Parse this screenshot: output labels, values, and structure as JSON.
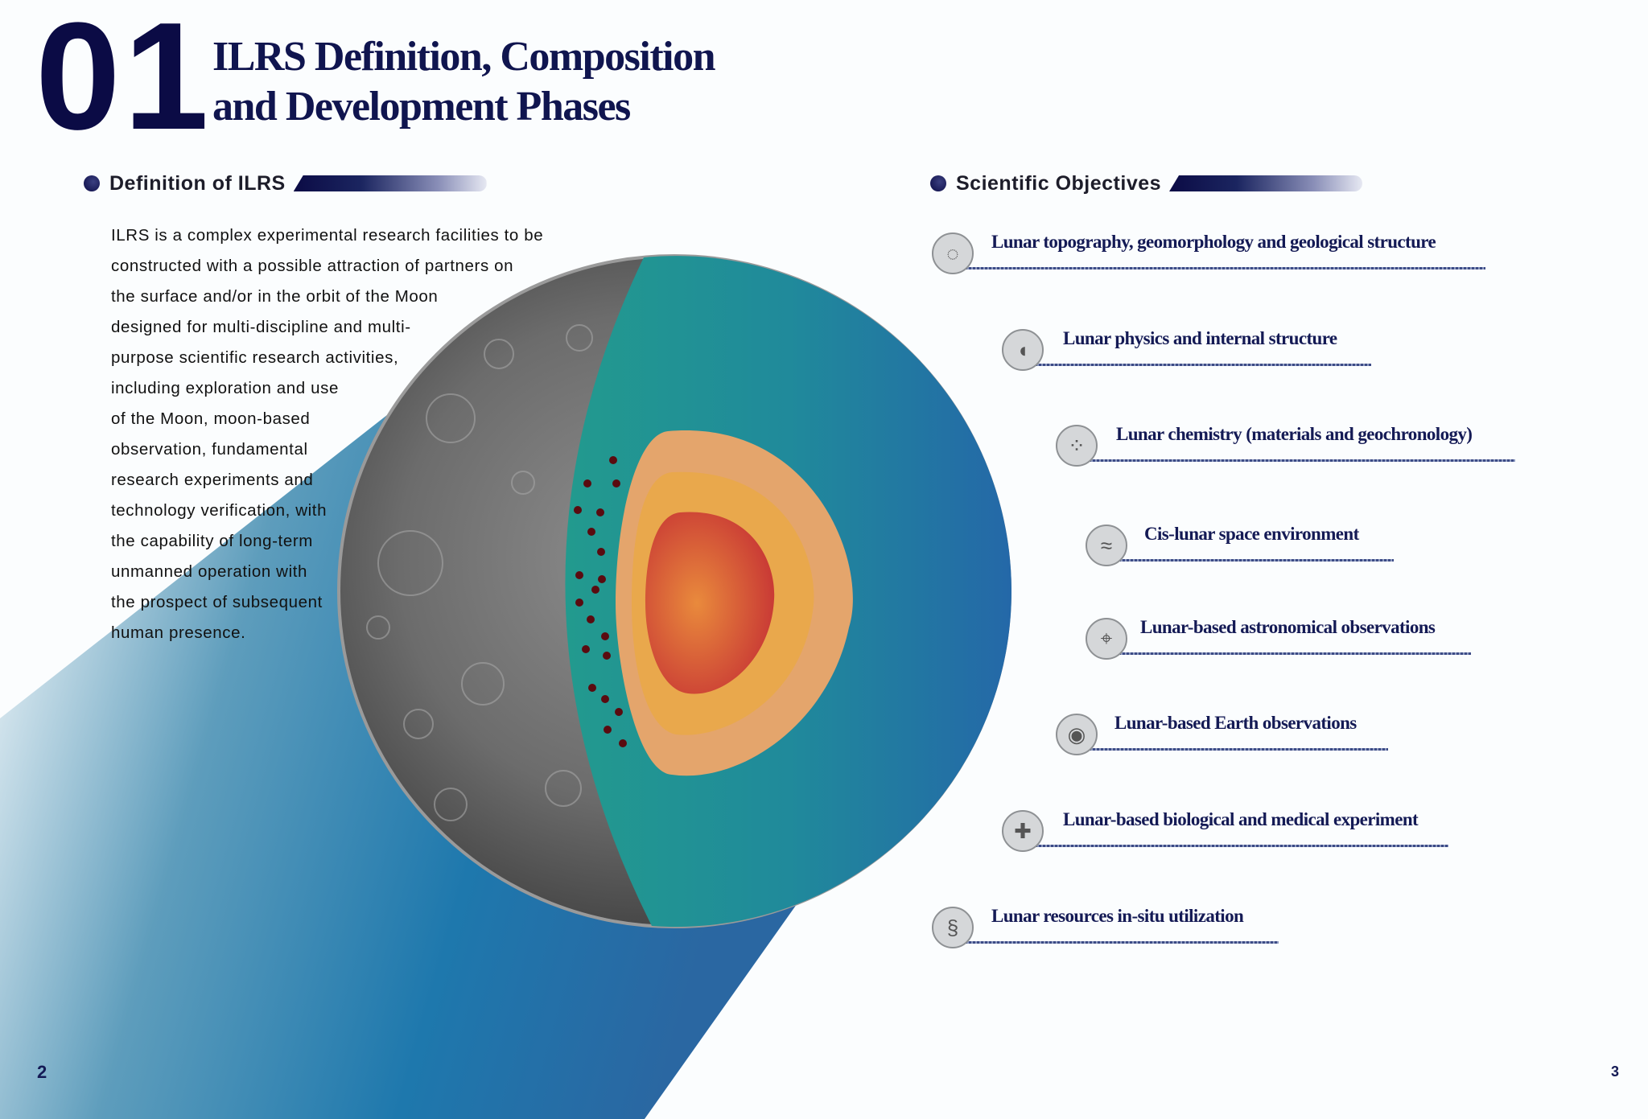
{
  "header": {
    "number": "01",
    "title_line1": "ILRS Definition, Composition",
    "title_line2": "and Development Phases"
  },
  "definition": {
    "heading": "Definition of ILRS",
    "lines": [
      "ILRS is a complex experimental research facilities to be",
      "constructed with a possible attraction of partners on",
      "the surface and/or in the orbit of the Moon",
      "designed for multi-discipline and multi-",
      "purpose scientific research activities,",
      "including exploration and use",
      "of the Moon, moon-based",
      "observation, fundamental",
      "research experiments and",
      "technology verification, with",
      "the capability of long-term",
      "unmanned operation with",
      "the prospect of subsequent",
      "human presence."
    ]
  },
  "objectives": {
    "heading": "Scientific Objectives",
    "items": [
      {
        "label": "Lunar topography, geomorphology and geological structure",
        "icon": "moon-surface-icon"
      },
      {
        "label": "Lunar physics and internal structure",
        "icon": "moon-interior-icon"
      },
      {
        "label": "Lunar chemistry (materials and geochronology)",
        "icon": "particles-icon"
      },
      {
        "label": "Cis-lunar space environment",
        "icon": "waves-icon"
      },
      {
        "label": "Lunar-based astronomical observations",
        "icon": "telescope-icon"
      },
      {
        "label": "Lunar-based Earth observations",
        "icon": "eye-magnifier-icon"
      },
      {
        "label": "Lunar-based biological and medical experiment",
        "icon": "medical-kit-icon"
      },
      {
        "label": "Lunar resources in-situ utilization",
        "icon": "dna-icon"
      }
    ]
  },
  "page_numbers": {
    "left": "2",
    "right": "3"
  },
  "colors": {
    "navy": "#0b0b45",
    "teal": "#229a8e",
    "blue": "#2470a8",
    "mantle": "#e4a56c",
    "outer_core": "#e9a84c",
    "inner_core": "#d0433a"
  }
}
